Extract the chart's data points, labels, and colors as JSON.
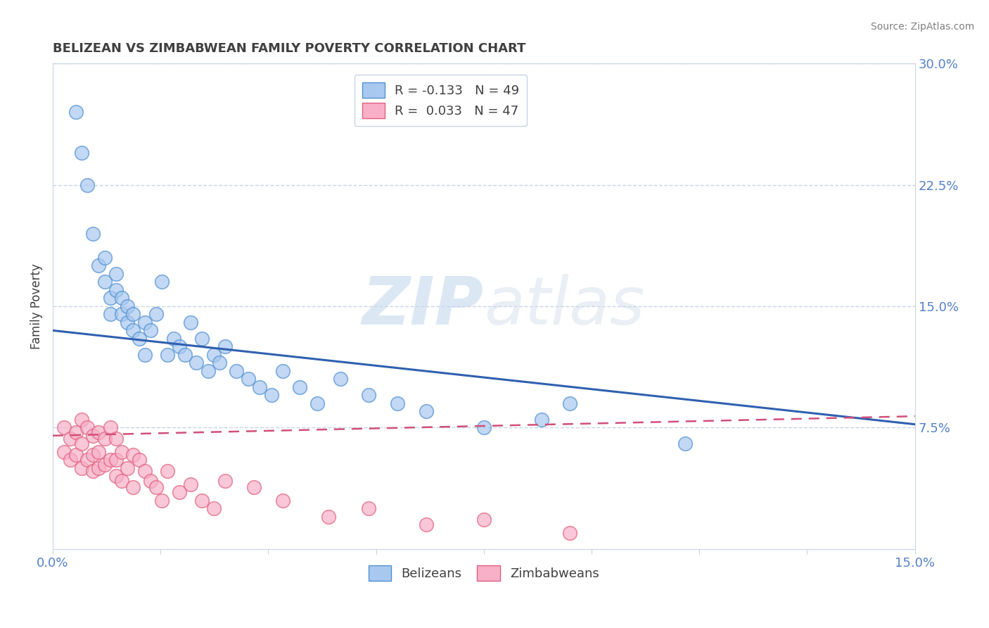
{
  "title": "BELIZEAN VS ZIMBABWEAN FAMILY POVERTY CORRELATION CHART",
  "source": "Source: ZipAtlas.com",
  "ylabel": "Family Poverty",
  "x_min": 0.0,
  "x_max": 0.15,
  "y_min": 0.0,
  "y_max": 0.3,
  "watermark_zip": "ZIP",
  "watermark_atlas": "atlas",
  "legend_label_blue": "R = -0.133   N = 49",
  "legend_label_pink": "R =  0.033   N = 47",
  "belizean_color": "#a8c8f0",
  "zimbabwean_color": "#f8b0c8",
  "belizean_edge_color": "#5090d0",
  "zimbabwean_edge_color": "#e06080",
  "belizean_line_color": "#3060b0",
  "zimbabwean_line_color": "#d05078",
  "belizean_line_start_y": 0.135,
  "belizean_line_end_y": 0.077,
  "zimbabwean_line_start_y": 0.07,
  "zimbabwean_line_end_y": 0.082,
  "belizean_x": [
    0.004,
    0.005,
    0.006,
    0.007,
    0.008,
    0.009,
    0.009,
    0.01,
    0.01,
    0.011,
    0.011,
    0.012,
    0.012,
    0.013,
    0.013,
    0.014,
    0.014,
    0.015,
    0.016,
    0.016,
    0.017,
    0.018,
    0.019,
    0.02,
    0.021,
    0.022,
    0.023,
    0.024,
    0.025,
    0.026,
    0.027,
    0.028,
    0.029,
    0.03,
    0.032,
    0.034,
    0.036,
    0.038,
    0.04,
    0.043,
    0.046,
    0.05,
    0.055,
    0.06,
    0.065,
    0.075,
    0.085,
    0.09,
    0.11
  ],
  "belizean_y": [
    0.27,
    0.245,
    0.225,
    0.195,
    0.175,
    0.165,
    0.18,
    0.155,
    0.145,
    0.16,
    0.17,
    0.145,
    0.155,
    0.14,
    0.15,
    0.135,
    0.145,
    0.13,
    0.14,
    0.12,
    0.135,
    0.145,
    0.165,
    0.12,
    0.13,
    0.125,
    0.12,
    0.14,
    0.115,
    0.13,
    0.11,
    0.12,
    0.115,
    0.125,
    0.11,
    0.105,
    0.1,
    0.095,
    0.11,
    0.1,
    0.09,
    0.105,
    0.095,
    0.09,
    0.085,
    0.075,
    0.08,
    0.09,
    0.065
  ],
  "zimbabwean_x": [
    0.002,
    0.002,
    0.003,
    0.003,
    0.004,
    0.004,
    0.005,
    0.005,
    0.005,
    0.006,
    0.006,
    0.007,
    0.007,
    0.007,
    0.008,
    0.008,
    0.008,
    0.009,
    0.009,
    0.01,
    0.01,
    0.011,
    0.011,
    0.011,
    0.012,
    0.012,
    0.013,
    0.014,
    0.014,
    0.015,
    0.016,
    0.017,
    0.018,
    0.019,
    0.02,
    0.022,
    0.024,
    0.026,
    0.028,
    0.03,
    0.035,
    0.04,
    0.048,
    0.055,
    0.065,
    0.075,
    0.09
  ],
  "zimbabwean_y": [
    0.075,
    0.06,
    0.068,
    0.055,
    0.072,
    0.058,
    0.08,
    0.065,
    0.05,
    0.075,
    0.055,
    0.07,
    0.058,
    0.048,
    0.072,
    0.06,
    0.05,
    0.068,
    0.052,
    0.075,
    0.055,
    0.068,
    0.055,
    0.045,
    0.06,
    0.042,
    0.05,
    0.058,
    0.038,
    0.055,
    0.048,
    0.042,
    0.038,
    0.03,
    0.048,
    0.035,
    0.04,
    0.03,
    0.025,
    0.042,
    0.038,
    0.03,
    0.02,
    0.025,
    0.015,
    0.018,
    0.01
  ],
  "title_color": "#404040",
  "source_color": "#808080",
  "axis_color": "#5580c8",
  "grid_color": "#c8d4e8",
  "background_color": "#ffffff"
}
